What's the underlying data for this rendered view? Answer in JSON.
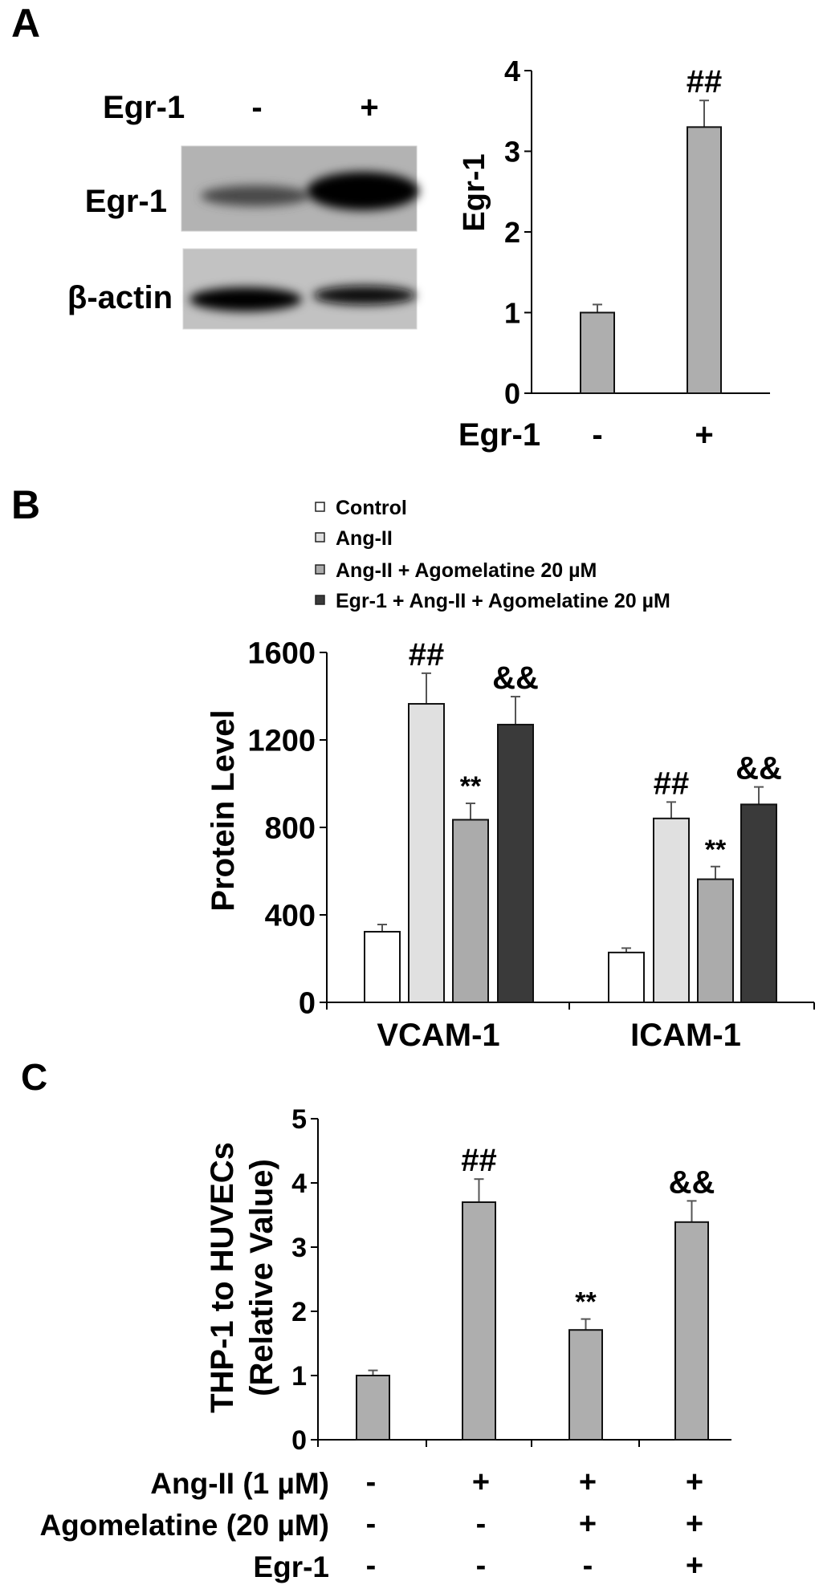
{
  "panels": {
    "a": "A",
    "b": "B",
    "c": "C"
  },
  "blot": {
    "header_label": "Egr-1",
    "lanes": [
      "-",
      "+"
    ],
    "rows": [
      "Egr-1",
      "β-actin"
    ]
  },
  "colors": {
    "bar_gray": "#aeaeae",
    "control": "#ffffff",
    "ang": "#e0e0e0",
    "ago": "#ababab",
    "egr": "#3a3a3a",
    "axis": "#000000",
    "error": "#555555"
  },
  "chart_data": [
    {
      "type": "bar",
      "panel": "A",
      "title": "",
      "ylabel": "Egr-1",
      "xlabel": "Egr-1",
      "ylim": [
        0,
        4
      ],
      "yticks": [
        0,
        1,
        2,
        3,
        4
      ],
      "categories": [
        "-",
        "+"
      ],
      "values": [
        1.0,
        3.3
      ],
      "errors": [
        0.1,
        0.33
      ],
      "annotations": [
        "",
        "##"
      ],
      "grid": false
    },
    {
      "type": "bar",
      "panel": "B",
      "title": "",
      "ylabel": "Protein Level",
      "xlabel": "",
      "ylim": [
        0,
        1600
      ],
      "yticks": [
        0,
        400,
        800,
        1200,
        1600
      ],
      "categories": [
        "VCAM-1",
        "ICAM-1"
      ],
      "legend_position": "top",
      "series": [
        {
          "name": "Control",
          "color": "#ffffff",
          "values": [
            323,
            228
          ],
          "errors": [
            33,
            20
          ],
          "annotations": [
            "",
            ""
          ]
        },
        {
          "name": "Ang-II",
          "color": "#e0e0e0",
          "values": [
            1365,
            841
          ],
          "errors": [
            140,
            75
          ],
          "annotations": [
            "##",
            "##"
          ]
        },
        {
          "name": "Ang-II + Agomelatine 20 µM",
          "color": "#ababab",
          "values": [
            835,
            563
          ],
          "errors": [
            75,
            58
          ],
          "annotations": [
            "**",
            "**"
          ]
        },
        {
          "name": "Egr-1 + Ang-II + Agomelatine 20 µM",
          "color": "#3a3a3a",
          "values": [
            1270,
            905
          ],
          "errors": [
            128,
            80
          ],
          "annotations": [
            "&&",
            "&&"
          ]
        }
      ],
      "grid": false
    },
    {
      "type": "bar",
      "panel": "C",
      "title": "",
      "ylabel": [
        "THP-1 to HUVECs",
        "(Relative Value)"
      ],
      "xlabel": "",
      "ylim": [
        0,
        5
      ],
      "yticks": [
        0,
        1,
        2,
        3,
        4,
        5
      ],
      "values": [
        1.0,
        3.7,
        1.71,
        3.39
      ],
      "errors": [
        0.08,
        0.36,
        0.17,
        0.33
      ],
      "annotations": [
        "",
        "##",
        "**",
        "&&"
      ],
      "treatments": [
        {
          "label": "Ang-II (1 µM)",
          "signs": [
            "-",
            "+",
            "+",
            "+"
          ]
        },
        {
          "label": "Agomelatine (20 µM)",
          "signs": [
            "-",
            "-",
            "+",
            "+"
          ]
        },
        {
          "label": "Egr-1",
          "signs": [
            "-",
            "-",
            "-",
            "+"
          ]
        }
      ],
      "grid": false
    }
  ]
}
